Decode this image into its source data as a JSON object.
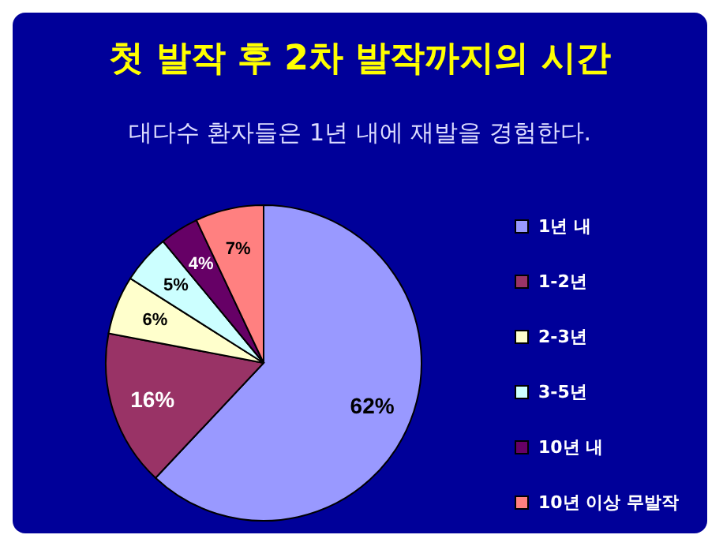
{
  "chart_data": {
    "type": "pie",
    "title": "첫 발작 후 2차 발작까지의 시간",
    "subtitle": "대다수 환자들은 1년 내에 재발을 경험한다.",
    "categories": [
      "1년 내",
      "1-2년",
      "2-3년",
      "3-5년",
      "10년 내",
      "10년 이상 무발작"
    ],
    "values": [
      62,
      16,
      6,
      5,
      4,
      7
    ],
    "colors": [
      "#9999ff",
      "#993366",
      "#ffffcc",
      "#ccffff",
      "#660066",
      "#ff8080"
    ],
    "value_labels": [
      "62%",
      "16%",
      "6%",
      "5%",
      "4%",
      "7%"
    ],
    "legend": "right"
  }
}
